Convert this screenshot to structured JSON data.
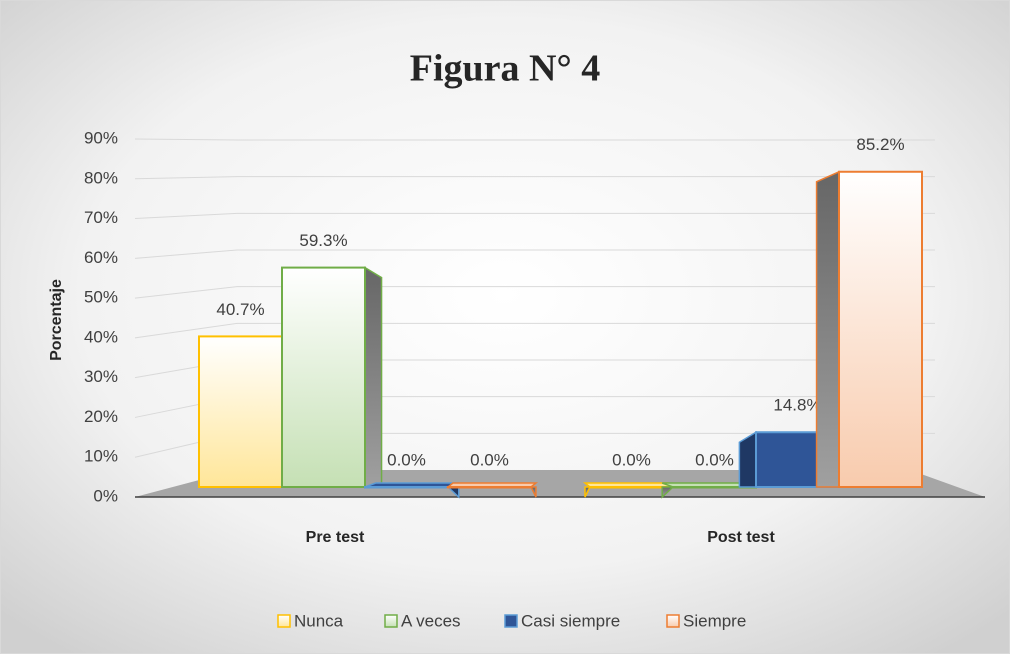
{
  "chart_data": {
    "type": "bar3d",
    "title": "Figura N° 4",
    "y_label": "Porcentaje",
    "categories": [
      "Pre test",
      "Post test"
    ],
    "series": [
      {
        "name": "Nunca",
        "color": "#ffc000",
        "fill": [
          "#ffffff",
          "#ffe699"
        ],
        "values": [
          40.7,
          0.0
        ],
        "value_labels": [
          "40.7%",
          "0.0%"
        ]
      },
      {
        "name": "A veces",
        "color": "#70ad47",
        "fill": [
          "#ffffff",
          "#c5e0b4"
        ],
        "values": [
          59.3,
          0.0
        ],
        "value_labels": [
          "59.3%",
          "0.0%"
        ]
      },
      {
        "name": "Casi siempre",
        "color": "#5b9bd5",
        "fill": [
          "#2f5597",
          "#2f5597"
        ],
        "values": [
          0.0,
          14.8
        ],
        "value_labels": [
          "0.0%",
          "14.8%"
        ]
      },
      {
        "name": "Siempre",
        "color": "#ed7d31",
        "fill": [
          "#ffffff",
          "#f8cbad"
        ],
        "values": [
          0.0,
          85.2
        ],
        "value_labels": [
          "0.0%",
          "85.2%"
        ]
      }
    ],
    "ylim": [
      0,
      90
    ],
    "yticks": [
      {
        "value": 0,
        "label": "0%"
      },
      {
        "value": 10,
        "label": "10%"
      },
      {
        "value": 20,
        "label": "20%"
      },
      {
        "value": 30,
        "label": "30%"
      },
      {
        "value": 40,
        "label": "40%"
      },
      {
        "value": 50,
        "label": "50%"
      },
      {
        "value": 60,
        "label": "60%"
      },
      {
        "value": 70,
        "label": "70%"
      },
      {
        "value": 80,
        "label": "80%"
      },
      {
        "value": 90,
        "label": "90%"
      }
    ],
    "grid": true,
    "legend": "bottom"
  }
}
